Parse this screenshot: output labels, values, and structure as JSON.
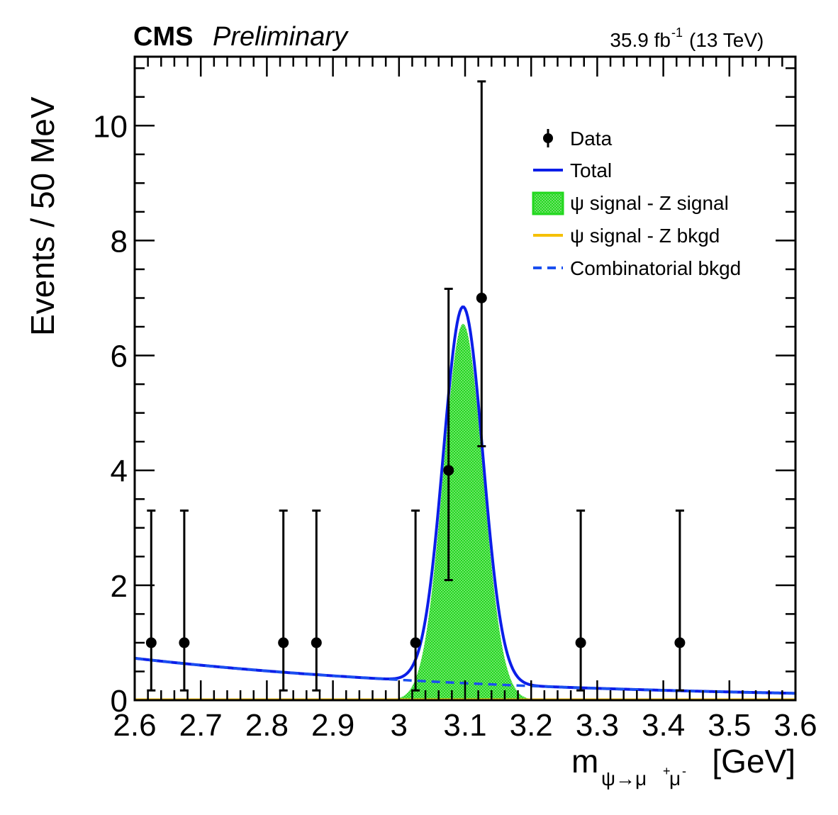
{
  "header": {
    "experiment": "CMS",
    "status": "Preliminary",
    "lumi_value": "35.9 fb",
    "lumi_exp": "-1",
    "energy": "(13 TeV)"
  },
  "chart_data": {
    "type": "scatter",
    "title": "",
    "xlabel_main": "m",
    "xlabel_sub": "ψ→μ",
    "xlabel_sup1": "+",
    "xlabel_mu": "μ",
    "xlabel_sup2": "-",
    "xlabel_unit": "[GeV]",
    "ylabel": "Events / 50 MeV",
    "xlim": [
      2.6,
      3.6
    ],
    "ylim": [
      0,
      11.2
    ],
    "xticks": [
      2.6,
      2.7,
      2.8,
      2.9,
      3.0,
      3.1,
      3.2,
      3.3,
      3.4,
      3.5,
      3.6
    ],
    "xtick_labels": [
      "2.6",
      "2.7",
      "2.8",
      "2.9",
      "3",
      "3.1",
      "3.2",
      "3.3",
      "3.4",
      "3.5",
      "3.6"
    ],
    "yticks": [
      0,
      2,
      4,
      6,
      8,
      10
    ],
    "ytick_labels": [
      "0",
      "2",
      "4",
      "6",
      "8",
      "10"
    ],
    "data_points": [
      {
        "x": 2.625,
        "y": 1,
        "err_low": 0.83,
        "err_high": 2.3
      },
      {
        "x": 2.675,
        "y": 1,
        "err_low": 0.83,
        "err_high": 2.3
      },
      {
        "x": 2.825,
        "y": 1,
        "err_low": 0.83,
        "err_high": 2.3
      },
      {
        "x": 2.875,
        "y": 1,
        "err_low": 0.83,
        "err_high": 2.3
      },
      {
        "x": 3.025,
        "y": 1,
        "err_low": 0.83,
        "err_high": 2.3
      },
      {
        "x": 3.075,
        "y": 4,
        "err_low": 1.91,
        "err_high": 3.16
      },
      {
        "x": 3.125,
        "y": 7,
        "err_low": 2.58,
        "err_high": 3.77
      },
      {
        "x": 3.275,
        "y": 1,
        "err_low": 0.83,
        "err_high": 2.3
      },
      {
        "x": 3.425,
        "y": 1,
        "err_low": 0.83,
        "err_high": 2.3
      }
    ],
    "model": {
      "signal_mean": 3.097,
      "signal_sigma": 0.03,
      "signal_amplitude": 6.55,
      "bkg_at_2p6": 0.73,
      "bkg_at_3p6": 0.12,
      "total_cutoff": [
        2.99,
        3.2
      ]
    },
    "legend": [
      {
        "label": "Data",
        "style": "marker",
        "color": "#000000"
      },
      {
        "label": "Total",
        "style": "line",
        "color": "#0b1ee8"
      },
      {
        "label": "ψ signal - Z signal",
        "style": "fill",
        "color": "#22d81e"
      },
      {
        "label": "ψ signal - Z bkgd",
        "style": "line",
        "color": "#f5c000"
      },
      {
        "label": "Combinatorial bkgd",
        "style": "dashed",
        "color": "#1a4ff0"
      }
    ]
  }
}
